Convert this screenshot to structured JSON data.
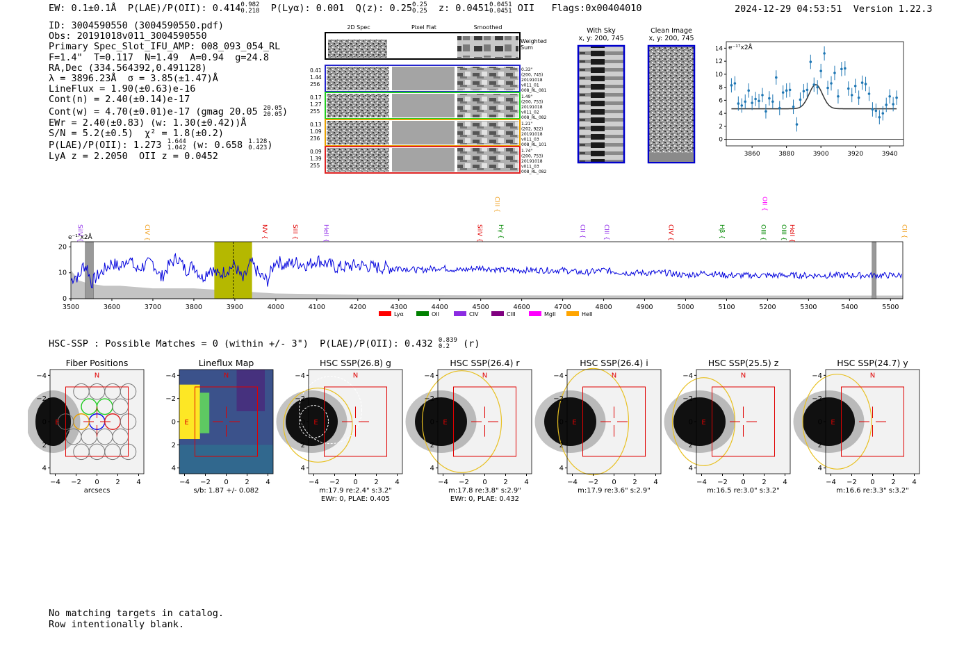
{
  "header": {
    "ew": "EW: 0.1±0.1Å",
    "plae_label": "P(LAE)/P(OII): 0.414",
    "plae_hi": "0.982",
    "plae_lo": "0.218",
    "plya": "P(Lyα): 0.001",
    "q_label": "Q(z): 0.25",
    "q_hi": "0.25",
    "q_lo": "0.25",
    "z_label": "z: 0.0451",
    "z_hi": "0.0451",
    "z_lo": "0.0451",
    "z_line": "OII",
    "flags": "Flags:0x00404010",
    "datetime": "2024-12-29 04:53:51",
    "version": "Version 1.22.3"
  },
  "info": {
    "id": "ID: 3004590550 (3004590550.pdf)",
    "obs": "Obs: 20191018v011_3004590550",
    "primary": "Primary Spec_Slot_IFU_AMP: 008_093_054_RL",
    "fiber": "F=1.4\"  T=0.117  N=1.49  A=0.94  g=24.8",
    "radec": "RA,Dec (334.564392,0.491128)",
    "lambda": "λ = 3896.23Å  σ = 3.85(±1.47)Å",
    "lineflux": "LineFlux = 1.90(±0.63)e-16",
    "contn": "Cont(n) = 2.40(±0.14)e-17",
    "contw": "Cont(w) = 4.70(±0.01)e-17 (gmag 20.05",
    "gmag_hi": "20.05",
    "gmag_lo": "20.05",
    "contw_close": ")",
    "ewr": "EWr = 2.40(±0.83) (w: 1.30(±0.42))Å",
    "sn": "S/N = 5.2(±0.5)  χ² = 1.8(±0.2)",
    "plae2": "P(LAE)/P(OII): 1.273",
    "plae2_hi": "1.644",
    "plae2_lo": "1.042",
    "plae2_w": "(w: 0.658",
    "plae2_w_hi": "1.128",
    "plae2_w_lo": "0.423",
    "plae2_close": ")",
    "lya_oii": "LyA z = 2.2050  OII z = 0.0452"
  },
  "cutouts": {
    "headers": [
      "2D Spec",
      "Pixel Flat",
      "Smoothed"
    ],
    "weighted_label": [
      "Weighted",
      "Sum"
    ],
    "rows": [
      {
        "left": [
          "0.41",
          "1.44",
          "256"
        ],
        "right": [
          "0.33\"",
          "(200, 745)",
          "20191018",
          "v011_01",
          "008_RL_081"
        ],
        "color": "#2222cc"
      },
      {
        "left": [
          "0.17",
          "1.27",
          "255"
        ],
        "right": [
          "1.49\"",
          "(200, 753)",
          "20191018",
          "v011_02",
          "008_RL_082"
        ],
        "color": "#22cc22"
      },
      {
        "left": [
          "0.13",
          "1.09",
          "236"
        ],
        "right": [
          "1.21\"",
          "(202, 922)",
          "20191018",
          "v011_03",
          "008_RL_101"
        ],
        "color": "#e8a000"
      },
      {
        "left": [
          "0.09",
          "1.39",
          "255"
        ],
        "right": [
          "1.74\"",
          "(200, 753)",
          "20191018",
          "v011_03",
          "008_RL_082"
        ],
        "color": "#dd2222"
      }
    ],
    "with_sky": [
      "With Sky",
      "x, y: 200, 745"
    ],
    "clean": [
      "Clean Image",
      "x, y: 200, 745"
    ]
  },
  "colors": {
    "blue": "#0000dd",
    "spec_blue": "#1f77b4",
    "olive": "#b5b800",
    "red": "#e00000",
    "gold": "#e8c020"
  },
  "chart_data": [
    {
      "type": "scatter",
      "title": "",
      "ylabel": "e⁻¹⁷x2Å",
      "xlim": [
        3845,
        3948
      ],
      "ylim": [
        -1,
        15
      ],
      "xticks": [
        3860,
        3880,
        3900,
        3920,
        3940
      ],
      "yticks": [
        0,
        2,
        4,
        6,
        8,
        10,
        12,
        14
      ],
      "x": [
        3848,
        3850,
        3852,
        3854,
        3856,
        3858,
        3860,
        3862,
        3864,
        3866,
        3868,
        3870,
        3872,
        3874,
        3876,
        3878,
        3880,
        3882,
        3884,
        3886,
        3888,
        3890,
        3892,
        3894,
        3896,
        3898,
        3900,
        3902,
        3904,
        3906,
        3908,
        3910,
        3912,
        3914,
        3916,
        3918,
        3920,
        3922,
        3924,
        3926,
        3928,
        3930,
        3932,
        3934,
        3936,
        3938,
        3940,
        3942,
        3944
      ],
      "values": [
        8.3,
        8.6,
        5.5,
        5.2,
        5.8,
        7.5,
        5.6,
        6.2,
        5.9,
        6.8,
        4.3,
        6.3,
        5.8,
        9.5,
        4.8,
        7.2,
        7.5,
        7.6,
        5.0,
        2.3,
        6.1,
        7.4,
        7.6,
        11.9,
        8.4,
        8.0,
        10.5,
        13.2,
        7.9,
        8.6,
        10.2,
        6.6,
        10.8,
        10.9,
        7.8,
        6.8,
        8.2,
        6.4,
        8.7,
        8.5,
        7.0,
        4.6,
        4.4,
        3.4,
        4.0,
        5.3,
        6.6,
        5.4,
        6.4
      ],
      "fit": {
        "center": 3897,
        "amplitude": 3.7,
        "sigma": 3.9,
        "baseline": 4.7
      }
    },
    {
      "type": "line",
      "ylabel": "e⁻¹⁷x2Å",
      "xlim": [
        3500,
        5530
      ],
      "ylim": [
        0,
        22
      ],
      "xticks": [
        3500,
        3600,
        3700,
        3800,
        3900,
        4000,
        4100,
        4200,
        4300,
        4400,
        4500,
        4600,
        4700,
        4800,
        4900,
        5000,
        5100,
        5200,
        5300,
        5400,
        5500
      ],
      "yticks": [
        0,
        10,
        20
      ],
      "highlight": [
        3850,
        3942
      ],
      "line_center": 3896,
      "masked": [
        [
          3535,
          3555
        ],
        [
          5455,
          5465
        ]
      ],
      "series": [
        {
          "name": "spectrum",
          "points": [
            [
              3500,
              7
            ],
            [
              3510,
              9
            ],
            [
              3520,
              8
            ],
            [
              3530,
              13
            ],
            [
              3540,
              12
            ],
            [
              3550,
              6
            ],
            [
              3560,
              8
            ],
            [
              3580,
              11
            ],
            [
              3600,
              14
            ],
            [
              3620,
              12
            ],
            [
              3640,
              16
            ],
            [
              3660,
              11
            ],
            [
              3680,
              13
            ],
            [
              3700,
              14
            ],
            [
              3720,
              8
            ],
            [
              3740,
              13
            ],
            [
              3760,
              16
            ],
            [
              3780,
              11
            ],
            [
              3800,
              13
            ],
            [
              3820,
              8
            ],
            [
              3840,
              12
            ],
            [
              3860,
              9
            ],
            [
              3880,
              11
            ],
            [
              3900,
              13
            ],
            [
              3920,
              7
            ],
            [
              3940,
              14
            ],
            [
              3960,
              9
            ],
            [
              3980,
              7
            ],
            [
              4000,
              15
            ],
            [
              4020,
              13
            ],
            [
              4050,
              14
            ],
            [
              4080,
              13
            ],
            [
              4100,
              15
            ],
            [
              4150,
              12
            ],
            [
              4200,
              13
            ],
            [
              4250,
              12
            ],
            [
              4300,
              12
            ],
            [
              4350,
              11
            ],
            [
              4400,
              12
            ],
            [
              4450,
              11
            ],
            [
              4500,
              12
            ],
            [
              4550,
              11
            ],
            [
              4600,
              11
            ],
            [
              4650,
              11
            ],
            [
              4700,
              11
            ],
            [
              4750,
              10
            ],
            [
              4800,
              11
            ],
            [
              4850,
              10
            ],
            [
              4900,
              10
            ],
            [
              4950,
              10
            ],
            [
              5000,
              9
            ],
            [
              5050,
              10
            ],
            [
              5100,
              9
            ],
            [
              5150,
              9
            ],
            [
              5200,
              9
            ],
            [
              5250,
              9
            ],
            [
              5300,
              9
            ],
            [
              5350,
              9
            ],
            [
              5400,
              9
            ],
            [
              5450,
              9
            ],
            [
              5500,
              9
            ],
            [
              5530,
              9
            ]
          ]
        },
        {
          "name": "noise",
          "points": [
            [
              3500,
              11
            ],
            [
              3520,
              7
            ],
            [
              3540,
              6
            ],
            [
              3580,
              5
            ],
            [
              3620,
              5
            ],
            [
              3700,
              4
            ],
            [
              3800,
              4
            ],
            [
              3900,
              3
            ],
            [
              4000,
              2
            ],
            [
              4200,
              1.5
            ],
            [
              4500,
              1.3
            ],
            [
              5000,
              1.2
            ],
            [
              5530,
              1.2
            ]
          ]
        }
      ],
      "line_labels": [
        {
          "name": "SiIV",
          "x": 3513,
          "color": "#9333ea",
          "tier": "low"
        },
        {
          "name": "CIV",
          "x": 3676,
          "color": "#f0a020",
          "tier": "low"
        },
        {
          "name": "NV",
          "x": 3963,
          "color": "#e00000",
          "tier": "low"
        },
        {
          "name": "SiII",
          "x": 4038,
          "color": "#e00000",
          "tier": "low"
        },
        {
          "name": "HeII",
          "x": 4113,
          "color": "#9333ea",
          "tier": "low"
        },
        {
          "name": "SiIV",
          "x": 4488,
          "color": "#e00000",
          "tier": "low"
        },
        {
          "name": "CIII",
          "x": 4530,
          "color": "#f0a020",
          "tier": "high"
        },
        {
          "name": "Hγ",
          "x": 4540,
          "color": "#008800",
          "tier": "low"
        },
        {
          "name": "CII",
          "x": 4739,
          "color": "#9333ea",
          "tier": "low"
        },
        {
          "name": "CIII",
          "x": 4797,
          "color": "#9333ea",
          "tier": "low"
        },
        {
          "name": "CIV",
          "x": 4954,
          "color": "#e00000",
          "tier": "low"
        },
        {
          "name": "Hβ",
          "x": 5079,
          "color": "#008800",
          "tier": "low"
        },
        {
          "name": "OII",
          "x": 5183,
          "color": "#ff00ff",
          "tier": "high"
        },
        {
          "name": "OIII",
          "x": 5180,
          "color": "#008800",
          "tier": "low"
        },
        {
          "name": "OIII",
          "x": 5230,
          "color": "#008800",
          "tier": "low"
        },
        {
          "name": "HeII",
          "x": 5250,
          "color": "#e00000",
          "tier": "low"
        },
        {
          "name": "CII",
          "x": 5524,
          "color": "#f0a020",
          "tier": "low"
        }
      ],
      "legend": [
        {
          "name": "Lyα",
          "color": "#ff0000"
        },
        {
          "name": "OII",
          "color": "#008000"
        },
        {
          "name": "CIV",
          "color": "#8b2be2"
        },
        {
          "name": "CIII",
          "color": "#800080"
        },
        {
          "name": "MgII",
          "color": "#ff00ff"
        },
        {
          "name": "HeII",
          "color": "#ffa500"
        }
      ]
    }
  ],
  "hsc": {
    "summary": "HSC-SSP : Possible Matches = 0 (within +/- 3\")  P(LAE)/P(OII): 0.432",
    "summary_hi": "0.839",
    "summary_lo": "0.2",
    "summary_band": "(r)",
    "compass_n": "N",
    "compass_e": "E",
    "ticks": [
      "−4",
      "−2",
      "0",
      "2",
      "4"
    ],
    "panels": [
      {
        "title": "Fiber Positions",
        "cap1": "arcsecs",
        "cap2": ""
      },
      {
        "title": "Lineflux Map",
        "cap1": "s/b: 1.87 +/- 0.082",
        "cap2": ""
      },
      {
        "title": "HSC SSP(26.8) g",
        "cap1": "m:17.9  re:2.4\"  s:3.2\"",
        "cap2": "EWr: 0, PLAE: 0.405"
      },
      {
        "title": "HSC SSP(26.4) r",
        "cap1": "m:17.8  re:3.8\"  s:2.9\"",
        "cap2": "EWr: 0, PLAE: 0.432"
      },
      {
        "title": "HSC SSP(26.4) i",
        "cap1": "m:17.9  re:3.6\"  s:2.9\"",
        "cap2": ""
      },
      {
        "title": "HSC SSP(25.5) z",
        "cap1": "m:16.5  re:3.0\"  s:3.2\"",
        "cap2": ""
      },
      {
        "title": "HSC SSP(24.7) y",
        "cap1": "m:16.6  re:3.3\"  s:3.2\"",
        "cap2": ""
      }
    ]
  },
  "footer": {
    "line1": "No matching targets in catalog.",
    "line2": "Row intentionally blank."
  }
}
